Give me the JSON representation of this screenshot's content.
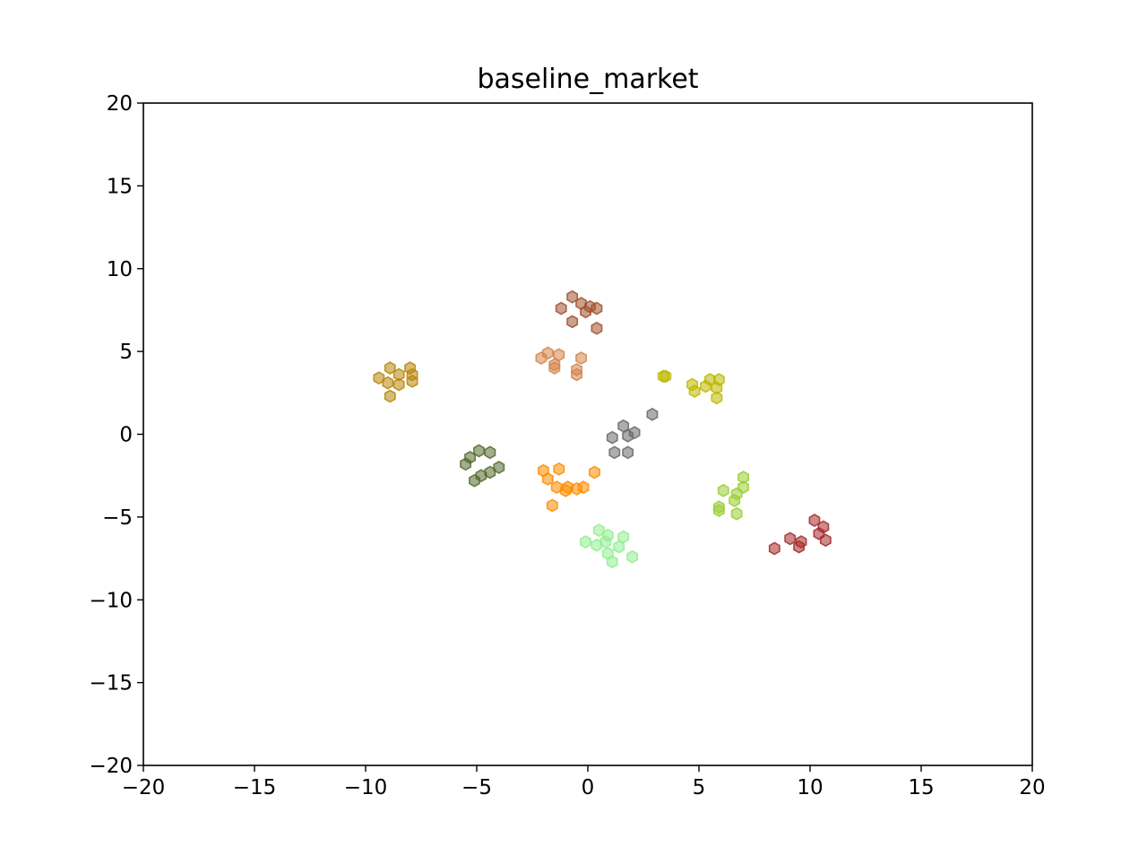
{
  "chart_data": {
    "type": "scatter",
    "title": "baseline_market",
    "xlabel": "",
    "ylabel": "",
    "xlim": [
      -20,
      20
    ],
    "ylim": [
      -20,
      20
    ],
    "xticks": [
      -20,
      -15,
      -10,
      -5,
      0,
      5,
      10,
      15,
      20
    ],
    "yticks": [
      -20,
      -15,
      -10,
      -5,
      0,
      5,
      10,
      15,
      20
    ],
    "xtick_labels": [
      "−20",
      "−15",
      "−10",
      "−5",
      "0",
      "5",
      "10",
      "15",
      "20"
    ],
    "ytick_labels": [
      "−20",
      "−15",
      "−10",
      "−5",
      "0",
      "5",
      "10",
      "15",
      "20"
    ],
    "grid": false,
    "legend": "none",
    "marker": "hexagon",
    "series": [
      {
        "color": "#a0522d",
        "points": [
          [
            -0.7,
            8.3
          ],
          [
            -0.3,
            7.9
          ],
          [
            0.1,
            7.7
          ],
          [
            0.4,
            7.6
          ],
          [
            -1.2,
            7.6
          ],
          [
            -0.1,
            7.4
          ],
          [
            -0.7,
            6.8
          ],
          [
            0.4,
            6.4
          ]
        ]
      },
      {
        "color": "#d2854a",
        "points": [
          [
            -1.8,
            4.9
          ],
          [
            -1.3,
            4.8
          ],
          [
            -2.1,
            4.6
          ],
          [
            -0.3,
            4.6
          ],
          [
            -1.5,
            4.2
          ],
          [
            -1.5,
            4.0
          ],
          [
            -0.5,
            3.9
          ],
          [
            -0.5,
            3.6
          ]
        ]
      },
      {
        "color": "#b8860b",
        "points": [
          [
            -8.9,
            4.0
          ],
          [
            -8.0,
            4.0
          ],
          [
            -8.5,
            3.6
          ],
          [
            -7.9,
            3.6
          ],
          [
            -9.4,
            3.4
          ],
          [
            -9.0,
            3.1
          ],
          [
            -7.9,
            3.2
          ],
          [
            -8.5,
            3.0
          ],
          [
            -8.9,
            2.3
          ]
        ]
      },
      {
        "color": "#bdb800",
        "points": [
          [
            3.4,
            3.5
          ],
          [
            3.5,
            3.5
          ],
          [
            5.5,
            3.3
          ],
          [
            5.9,
            3.3
          ],
          [
            4.7,
            3.0
          ],
          [
            5.3,
            2.9
          ],
          [
            5.8,
            2.8
          ],
          [
            4.8,
            2.6
          ],
          [
            5.8,
            2.2
          ]
        ]
      },
      {
        "color": "#696969",
        "points": [
          [
            2.9,
            1.2
          ],
          [
            1.6,
            0.5
          ],
          [
            2.1,
            0.1
          ],
          [
            1.1,
            -0.2
          ],
          [
            1.8,
            -0.1
          ],
          [
            1.2,
            -1.1
          ],
          [
            1.8,
            -1.1
          ]
        ]
      },
      {
        "color": "#556b2f",
        "points": [
          [
            -4.9,
            -1.0
          ],
          [
            -4.4,
            -1.1
          ],
          [
            -5.3,
            -1.4
          ],
          [
            -5.5,
            -1.8
          ],
          [
            -4.0,
            -2.0
          ],
          [
            -4.4,
            -2.3
          ],
          [
            -4.8,
            -2.5
          ],
          [
            -5.1,
            -2.8
          ]
        ]
      },
      {
        "color": "#ff8c00",
        "points": [
          [
            -2.0,
            -2.2
          ],
          [
            -1.3,
            -2.1
          ],
          [
            0.3,
            -2.3
          ],
          [
            -1.8,
            -2.7
          ],
          [
            -1.4,
            -3.2
          ],
          [
            -0.9,
            -3.2
          ],
          [
            -0.5,
            -3.3
          ],
          [
            -0.2,
            -3.2
          ],
          [
            -1.0,
            -3.4
          ],
          [
            -1.6,
            -4.3
          ]
        ]
      },
      {
        "color": "#9acd32",
        "points": [
          [
            7.0,
            -2.6
          ],
          [
            7.0,
            -3.2
          ],
          [
            6.1,
            -3.4
          ],
          [
            6.7,
            -3.6
          ],
          [
            6.6,
            -4.0
          ],
          [
            5.9,
            -4.4
          ],
          [
            5.9,
            -4.6
          ],
          [
            6.7,
            -4.8
          ]
        ]
      },
      {
        "color": "#90ee90",
        "points": [
          [
            0.5,
            -5.8
          ],
          [
            0.9,
            -6.1
          ],
          [
            1.6,
            -6.2
          ],
          [
            0.8,
            -6.5
          ],
          [
            -0.1,
            -6.5
          ],
          [
            0.4,
            -6.7
          ],
          [
            1.4,
            -6.8
          ],
          [
            0.9,
            -7.2
          ],
          [
            2.0,
            -7.4
          ],
          [
            1.1,
            -7.7
          ]
        ]
      },
      {
        "color": "#a52a2a",
        "points": [
          [
            10.2,
            -5.2
          ],
          [
            10.6,
            -5.6
          ],
          [
            10.4,
            -6.0
          ],
          [
            9.1,
            -6.3
          ],
          [
            10.7,
            -6.4
          ],
          [
            9.6,
            -6.5
          ],
          [
            9.5,
            -6.8
          ],
          [
            8.4,
            -6.9
          ]
        ]
      }
    ]
  }
}
